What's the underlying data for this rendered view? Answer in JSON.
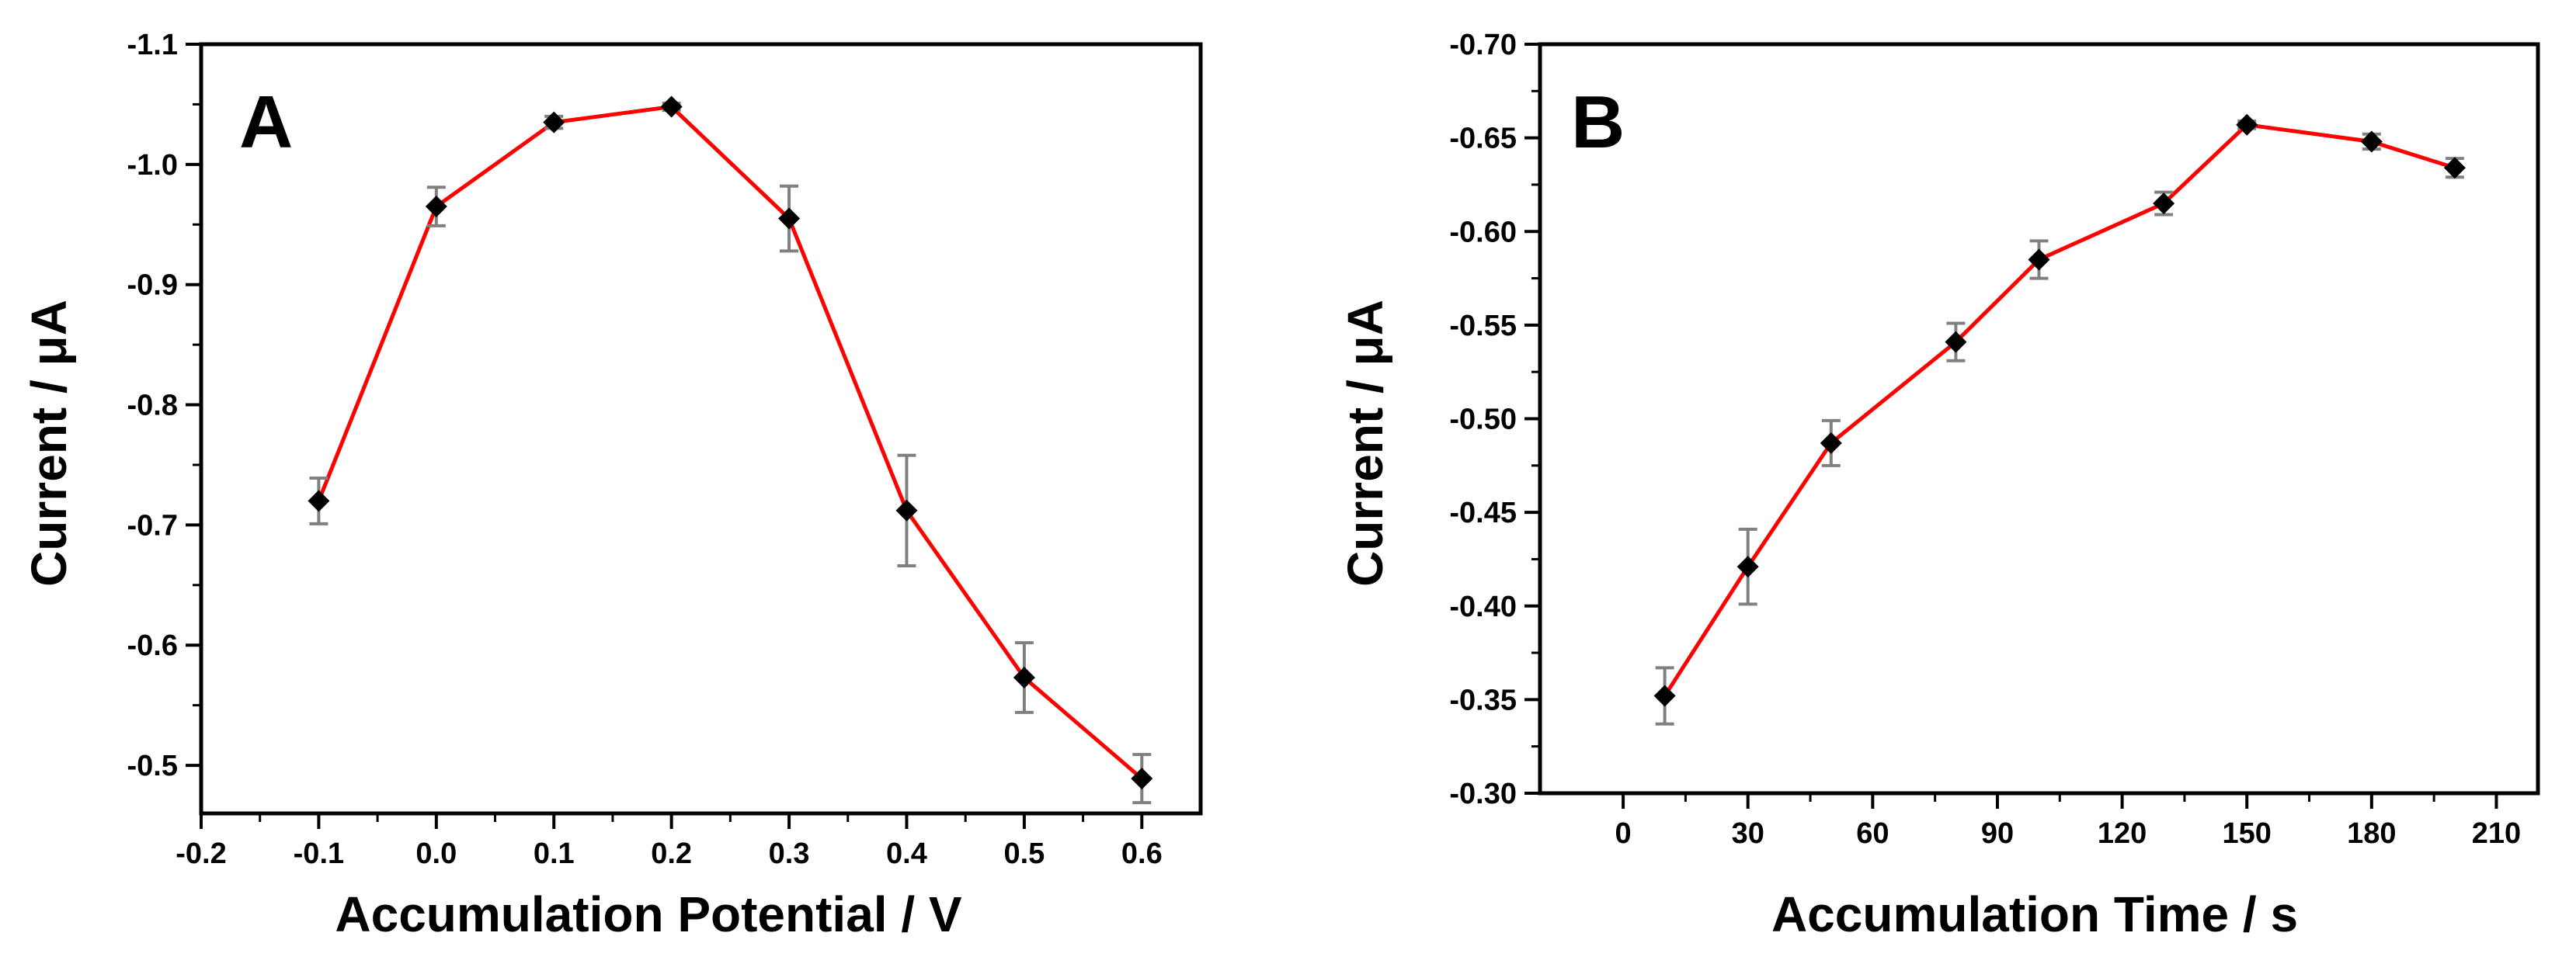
{
  "chart_data": [
    {
      "panel": "A",
      "type": "line",
      "xlabel": "Accumulation Potential / V",
      "ylabel": "Current / μA",
      "xlim": [
        -0.2,
        0.65
      ],
      "ylim": [
        -0.46,
        -1.1
      ],
      "xticks": [
        -0.2,
        -0.1,
        0.0,
        0.1,
        0.2,
        0.3,
        0.4,
        0.5,
        0.6
      ],
      "xtick_labels": [
        "-0.2",
        "-0.1",
        "0.0",
        "0.1",
        "0.2",
        "0.3",
        "0.4",
        "0.5",
        "0.6"
      ],
      "yticks": [
        -0.5,
        -0.6,
        -0.7,
        -0.8,
        -0.9,
        -1.0,
        -1.1
      ],
      "ytick_labels": [
        "-0.5",
        "-0.6",
        "-0.7",
        "-0.8",
        "-0.9",
        "-1.0",
        "-1.1"
      ],
      "y_axis_inverted": true,
      "grid": false,
      "line_color": "#ff0000",
      "marker_color": "#000000",
      "errorbar_color": "#808080",
      "x": [
        -0.1,
        0.0,
        0.1,
        0.2,
        0.3,
        0.4,
        0.5,
        0.6
      ],
      "y": [
        -0.72,
        -0.965,
        -1.035,
        -1.048,
        -0.955,
        -0.712,
        -0.573,
        -0.489
      ],
      "yerr": [
        0.019,
        0.016,
        0.005,
        0.003,
        0.027,
        0.046,
        0.029,
        0.02
      ]
    },
    {
      "panel": "B",
      "type": "line",
      "xlabel": "Accumulation Time / s",
      "ylabel": "Current / μA",
      "xlim": [
        -20,
        220
      ],
      "ylim": [
        -0.3,
        -0.7
      ],
      "xticks": [
        0,
        30,
        60,
        90,
        120,
        150,
        180,
        210
      ],
      "xtick_labels": [
        "0",
        "30",
        "60",
        "90",
        "120",
        "150",
        "180",
        "210"
      ],
      "yticks": [
        -0.3,
        -0.35,
        -0.4,
        -0.45,
        -0.5,
        -0.55,
        -0.6,
        -0.65,
        -0.7
      ],
      "ytick_labels": [
        "-0.30",
        "-0.35",
        "-0.40",
        "-0.45",
        "-0.50",
        "-0.55",
        "-0.60",
        "-0.65",
        "-0.70"
      ],
      "y_axis_inverted": true,
      "grid": false,
      "line_color": "#ff0000",
      "marker_color": "#000000",
      "errorbar_color": "#808080",
      "x": [
        10,
        30,
        50,
        80,
        100,
        130,
        150,
        180,
        200
      ],
      "y": [
        -0.352,
        -0.421,
        -0.487,
        -0.541,
        -0.585,
        -0.615,
        -0.657,
        -0.648,
        -0.634
      ],
      "yerr": [
        0.015,
        0.02,
        0.012,
        0.01,
        0.01,
        0.006,
        0.002,
        0.004,
        0.005
      ]
    }
  ]
}
